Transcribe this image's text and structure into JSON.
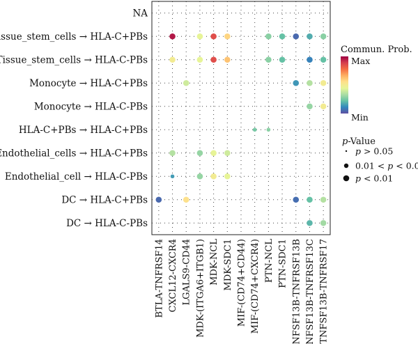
{
  "chart_data": {
    "type": "scatter",
    "title": "",
    "xlabel": "",
    "ylabel": "",
    "rows": [
      "NA",
      "Tissue_stem_cells → HLA-C+PBs",
      "Tissue_stem_cells → HLA-C-PBs",
      "Monocyte → HLA-C+PBs",
      "Monocyte → HLA-C-PBs",
      "HLA-C+PBs → HLA-C+PBs",
      "Endothelial_cells → HLA-C+PBs",
      "Endothelial_cell → HLA-C-PBs",
      "DC → HLA-C+PBs",
      "DC → HLA-C-PBs"
    ],
    "columns": [
      "BTLA-TNFRSF14",
      "CXCL12-CXCR4",
      "LGALS9-CD44",
      "MDK-(ITGA6+ITGB1)",
      "MDK-NCL",
      "MDK-SDC1",
      "MIF-(CD74+CD44)",
      "MIF-(CD74+CXCR4)",
      "PTN-NCL",
      "PTN-SDC1",
      "TNFSF13B-TNFRSF13B",
      "TNFSF13B-TNFRSF13C",
      "TNFSF13B-TNFRSF17"
    ],
    "points": [
      {
        "row": 1,
        "col": 1,
        "prob": 0.96,
        "p": 2
      },
      {
        "row": 1,
        "col": 3,
        "prob": 0.45,
        "p": 2
      },
      {
        "row": 1,
        "col": 4,
        "prob": 0.85,
        "p": 2
      },
      {
        "row": 1,
        "col": 5,
        "prob": 0.58,
        "p": 2
      },
      {
        "row": 1,
        "col": 8,
        "prob": 0.28,
        "p": 2
      },
      {
        "row": 1,
        "col": 9,
        "prob": 0.22,
        "p": 2
      },
      {
        "row": 1,
        "col": 10,
        "prob": 0.05,
        "p": 2
      },
      {
        "row": 1,
        "col": 11,
        "prob": 0.18,
        "p": 2
      },
      {
        "row": 1,
        "col": 12,
        "prob": 0.28,
        "p": 2
      },
      {
        "row": 2,
        "col": 1,
        "prob": 0.5,
        "p": 2
      },
      {
        "row": 2,
        "col": 3,
        "prob": 0.45,
        "p": 2
      },
      {
        "row": 2,
        "col": 4,
        "prob": 0.85,
        "p": 2
      },
      {
        "row": 2,
        "col": 5,
        "prob": 0.62,
        "p": 2
      },
      {
        "row": 2,
        "col": 8,
        "prob": 0.28,
        "p": 2
      },
      {
        "row": 2,
        "col": 9,
        "prob": 0.22,
        "p": 2
      },
      {
        "row": 2,
        "col": 11,
        "prob": 0.1,
        "p": 2
      },
      {
        "row": 2,
        "col": 12,
        "prob": 0.22,
        "p": 2
      },
      {
        "row": 3,
        "col": 2,
        "prob": 0.4,
        "p": 2
      },
      {
        "row": 3,
        "col": 10,
        "prob": 0.14,
        "p": 2
      },
      {
        "row": 3,
        "col": 11,
        "prob": 0.35,
        "p": 2
      },
      {
        "row": 3,
        "col": 12,
        "prob": 0.5,
        "p": 2
      },
      {
        "row": 4,
        "col": 11,
        "prob": 0.3,
        "p": 2
      },
      {
        "row": 4,
        "col": 12,
        "prob": 0.5,
        "p": 2
      },
      {
        "row": 5,
        "col": 7,
        "prob": 0.25,
        "p": 1
      },
      {
        "row": 5,
        "col": 8,
        "prob": 0.28,
        "p": 1
      },
      {
        "row": 6,
        "col": 1,
        "prob": 0.35,
        "p": 2
      },
      {
        "row": 6,
        "col": 3,
        "prob": 0.3,
        "p": 2
      },
      {
        "row": 6,
        "col": 4,
        "prob": 0.45,
        "p": 2
      },
      {
        "row": 6,
        "col": 5,
        "prob": 0.4,
        "p": 2
      },
      {
        "row": 7,
        "col": 1,
        "prob": 0.15,
        "p": 1
      },
      {
        "row": 7,
        "col": 3,
        "prob": 0.3,
        "p": 2
      },
      {
        "row": 7,
        "col": 4,
        "prob": 0.5,
        "p": 2
      },
      {
        "row": 7,
        "col": 5,
        "prob": 0.45,
        "p": 2
      },
      {
        "row": 8,
        "col": 0,
        "prob": 0.05,
        "p": 2
      },
      {
        "row": 8,
        "col": 2,
        "prob": 0.55,
        "p": 2
      },
      {
        "row": 8,
        "col": 10,
        "prob": 0.06,
        "p": 2
      },
      {
        "row": 8,
        "col": 11,
        "prob": 0.22,
        "p": 2
      },
      {
        "row": 8,
        "col": 12,
        "prob": 0.35,
        "p": 2
      },
      {
        "row": 9,
        "col": 11,
        "prob": 0.2,
        "p": 2
      },
      {
        "row": 9,
        "col": 12,
        "prob": 0.32,
        "p": 2
      }
    ],
    "legend_color": {
      "title": "Commun. Prob.",
      "max_label": "Max",
      "min_label": "Min",
      "colors": [
        "#5e4fa2",
        "#3288bd",
        "#66c2a5",
        "#abdda4",
        "#e6f598",
        "#fee08b",
        "#fdae61",
        "#f46d43",
        "#d53e4f",
        "#9e0142"
      ]
    },
    "legend_size": {
      "title_italic": "p",
      "title_rest": "-Value",
      "items": [
        {
          "pre": "",
          "mid": "p",
          "post": " > 0.05"
        },
        {
          "pre": "0.01 < ",
          "mid": "p",
          "post": " < 0.05"
        },
        {
          "pre": "",
          "mid": "p",
          "post": " < 0.01"
        }
      ]
    },
    "grid": true,
    "legend_position": "right"
  }
}
